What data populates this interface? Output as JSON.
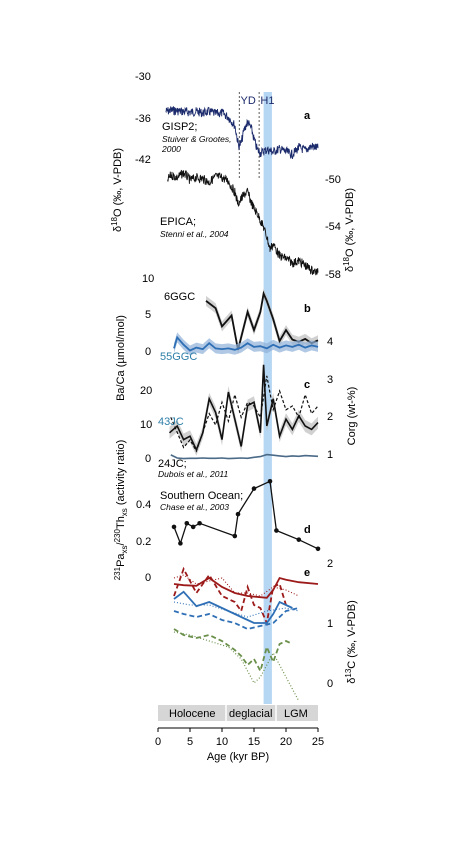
{
  "chart_data": {
    "type": "line",
    "title": "",
    "xlabel": "Age (kyr BP)",
    "xlim": [
      0,
      25
    ],
    "x_ticks": [
      "0",
      "5",
      "10",
      "15",
      "20",
      "25"
    ],
    "event_labels": {
      "yd": "YD",
      "h1": "H1"
    },
    "timeline": [
      "Holocene",
      "deglacial",
      "LGM"
    ],
    "colors": {
      "black": "#111111",
      "navy": "#1b2a6b",
      "blue": "#2f6fb5",
      "red": "#9c1a1a",
      "green": "#6a8f4a",
      "band": "#9ec9ef",
      "shade_blue": "#8fb0d9",
      "shade_gray": "#bdbdbd"
    },
    "panels": [
      {
        "id": "a",
        "panel_label": "a",
        "ylabel": "δ18O (‰, V-PDB)",
        "ylabel_pre": "δ",
        "ylabel_sup": "18",
        "ylabel_post": "O (‰, V-PDB)",
        "left_ticks": [
          "-30",
          "-36",
          "-42"
        ],
        "right_ticks": [
          "-50",
          "-54",
          "-58"
        ],
        "series": [
          {
            "name": "GISP2",
            "label": "GISP2;",
            "citation1": "Stuiver & Grootes,",
            "citation2": "2000",
            "x": [
              1.2,
              2,
              3,
              4,
              5,
              6,
              7,
              8,
              9,
              10,
              11,
              12,
              12.6,
              13,
              13.5,
              14,
              14.6,
              15,
              15.5,
              16,
              17,
              18,
              19,
              20,
              21,
              22,
              23,
              24,
              25
            ],
            "y": [
              -35.0,
              -34.8,
              -34.9,
              -35.0,
              -35.1,
              -35.0,
              -35.2,
              -35.0,
              -35.3,
              -35.2,
              -35.8,
              -37.0,
              -40.0,
              -39.5,
              -37.5,
              -36.5,
              -37.5,
              -39.0,
              -40.5,
              -41.0,
              -40.5,
              -40.8,
              -40.4,
              -40.8,
              -41.2,
              -40.2,
              -40.6,
              -40.0,
              -40.3
            ]
          },
          {
            "name": "EPICA",
            "label": "EPICA;",
            "citation1": "Stenni et al., 2004",
            "x": [
              1.5,
              2,
              3,
              4,
              5,
              6,
              7,
              8,
              9,
              10,
              11,
              11.5,
              12,
              12.5,
              13,
              13.5,
              14,
              14.5,
              15,
              15.5,
              16,
              16.5,
              17,
              17.5,
              18,
              19,
              20,
              21,
              22,
              23,
              24,
              25
            ],
            "y": [
              -50.0,
              -49.6,
              -49.8,
              -49.4,
              -50.0,
              -49.8,
              -49.9,
              -50.2,
              -49.7,
              -49.8,
              -50.1,
              -50.6,
              -51.0,
              -52.0,
              -51.6,
              -51.2,
              -51.0,
              -51.8,
              -52.4,
              -52.8,
              -53.4,
              -54.0,
              -54.8,
              -55.8,
              -55.4,
              -56.4,
              -56.6,
              -57.0,
              -56.8,
              -57.2,
              -57.6,
              -57.8
            ]
          }
        ]
      },
      {
        "id": "b",
        "panel_label": "b",
        "ylabel": "Ba/Ca (µmol/mol)",
        "left_ticks": [
          "10",
          "5",
          "0"
        ],
        "series": [
          {
            "name": "6GGC",
            "label": "6GGC",
            "x": [
              7.5,
              9,
              10,
              11.5,
              12.5,
              14,
              15,
              16,
              16.5,
              17,
              18,
              19,
              20,
              21,
              22,
              23,
              24,
              25
            ],
            "y": [
              7.0,
              6.0,
              3.5,
              5.0,
              0.3,
              5.5,
              3.0,
              5.5,
              8.0,
              7.0,
              4.5,
              1.5,
              3.0,
              1.7,
              1.4,
              1.8,
              1.2,
              1.6
            ]
          },
          {
            "name": "55GGC",
            "label": "55GGC",
            "x": [
              2.5,
              3,
              4,
              5,
              6,
              7,
              8,
              9,
              10,
              11,
              12,
              13,
              14,
              15,
              16,
              17,
              18,
              19,
              20,
              21,
              22,
              23,
              24,
              25
            ],
            "y": [
              0.5,
              2.0,
              1.0,
              0.2,
              0.6,
              0.4,
              1.2,
              0.5,
              0.4,
              0.5,
              0.3,
              0.6,
              1.2,
              0.7,
              0.8,
              0.5,
              1.0,
              0.6,
              0.9,
              0.7,
              1.0,
              0.6,
              0.9,
              0.7
            ]
          }
        ]
      },
      {
        "id": "c",
        "panel_label": "c",
        "ylabel": "Corg (wt-%)",
        "left_ticks": [
          "20",
          "10",
          "0"
        ],
        "right_ticks": [
          "4",
          "3",
          "2",
          "1"
        ],
        "series": [
          {
            "name": "43JC",
            "label": "43JC",
            "x": [
              1.8,
              3,
              4,
              5,
              6,
              7,
              8,
              9,
              10,
              11,
              12,
              13,
              14,
              15,
              16,
              16.5,
              17,
              18,
              19,
              20,
              21,
              22,
              23,
              24,
              25
            ],
            "y": [
              8.0,
              10.0,
              6.0,
              7.0,
              3.0,
              8.0,
              18.0,
              14.0,
              6.0,
              20.0,
              12.0,
              4.0,
              16.0,
              17.0,
              8.0,
              28.0,
              10.0,
              18.0,
              7.0,
              12.0,
              9.0,
              13.0,
              10.0,
              9.0,
              11.0
            ]
          },
          {
            "name": "24JC",
            "label": "24JC;",
            "citation1": "Dubois et al., 2011",
            "x": [
              2,
              3,
              4,
              5,
              6,
              7,
              8,
              9,
              10,
              11,
              12,
              13,
              14,
              15,
              16,
              17,
              18,
              19,
              20,
              21,
              22,
              23,
              24,
              25
            ],
            "y": [
              1.5,
              0.6,
              0.4,
              0.5,
              0.5,
              0.6,
              0.5,
              0.5,
              0.6,
              0.4,
              0.5,
              0.6,
              0.5,
              0.8,
              1.0,
              1.6,
              1.4,
              1.2,
              1.0,
              1.2,
              1.1,
              1.3,
              1.2,
              1.1
            ]
          },
          {
            "name": "Corg dashed",
            "x": [
              2,
              3,
              4,
              5,
              6,
              7,
              8,
              9,
              10,
              11,
              12,
              13,
              14,
              15,
              16,
              17,
              18,
              19,
              20,
              21,
              22,
              23,
              24,
              25
            ],
            "y": [
              2.0,
              1.6,
              1.2,
              1.4,
              1.1,
              1.6,
              2.1,
              1.8,
              2.4,
              1.9,
              2.6,
              2.0,
              2.4,
              2.3,
              2.0,
              3.1,
              2.2,
              2.7,
              2.2,
              2.3,
              2.0,
              2.6,
              2.1,
              2.3
            ]
          }
        ]
      },
      {
        "id": "d",
        "panel_label": "d",
        "ylabel_pre": "",
        "ylabel_sup1": "231",
        "ylabel_mid1": "Pa",
        "ylabel_sub1": "xs",
        "ylabel_mid2": "/",
        "ylabel_sup2": "230",
        "ylabel_mid3": "Th",
        "ylabel_sub2": "xs",
        "ylabel_post": " (activity ratio)",
        "left_ticks": [
          "0.4",
          "0.2",
          "0"
        ],
        "series": [
          {
            "name": "Southern Ocean",
            "label": "Southern Ocean;",
            "citation1": "Chase et al., 2003",
            "x": [
              2.5,
              3.5,
              4.5,
              5.5,
              6.5,
              12,
              12.5,
              15,
              17.5,
              18.5,
              22,
              25
            ],
            "y": [
              0.28,
              0.19,
              0.3,
              0.28,
              0.3,
              0.23,
              0.35,
              0.49,
              0.53,
              0.26,
              0.21,
              0.16
            ]
          }
        ]
      },
      {
        "id": "e",
        "panel_label": "e",
        "ylabel": "δ13C (‰, V-PDB)",
        "ylabel_pre": "δ",
        "ylabel_sup": "13",
        "ylabel_post": "C (‰, V-PDB)",
        "right_ticks": [
          "2",
          "1",
          "0"
        ],
        "series": [
          {
            "name": "red solid",
            "x": [
              2.5,
              4,
              6,
              8,
              10,
              12,
              14,
              16,
              17,
              18,
              19,
              20,
              22,
              25
            ],
            "y": [
              1.65,
              1.63,
              1.62,
              1.75,
              1.6,
              1.5,
              1.45,
              1.43,
              1.42,
              1.55,
              1.75,
              1.72,
              1.68,
              1.65
            ]
          },
          {
            "name": "red dashed",
            "x": [
              2.5,
              4,
              6,
              8,
              10,
              12,
              13,
              14,
              15,
              16,
              17,
              18,
              19,
              20
            ],
            "y": [
              1.45,
              1.9,
              1.5,
              1.8,
              1.45,
              1.35,
              1.2,
              1.6,
              1.3,
              1.25,
              1.0,
              1.6,
              1.65,
              1.3
            ]
          },
          {
            "name": "red dotted",
            "x": [
              2.5,
              4,
              6,
              8,
              10,
              12,
              14,
              16,
              18,
              20,
              22
            ],
            "y": [
              1.75,
              1.8,
              1.65,
              1.7,
              1.75,
              1.5,
              1.5,
              1.45,
              1.6,
              1.55,
              1.45
            ]
          },
          {
            "name": "blue solid",
            "x": [
              2.5,
              4,
              6,
              8,
              10,
              12,
              14,
              15,
              16,
              17,
              18,
              19,
              20,
              21
            ],
            "y": [
              1.4,
              1.52,
              1.28,
              1.35,
              1.25,
              1.15,
              1.05,
              1.0,
              1.0,
              1.0,
              1.15,
              1.35,
              1.3,
              1.25
            ]
          },
          {
            "name": "blue dashed",
            "x": [
              2.5,
              4,
              6,
              8,
              10,
              12,
              14,
              16,
              18,
              20,
              22
            ],
            "y": [
              1.2,
              1.15,
              1.1,
              1.15,
              1.05,
              1.0,
              0.9,
              0.95,
              1.0,
              1.2,
              1.25
            ]
          },
          {
            "name": "blue dotted",
            "x": [
              2.5,
              5,
              8,
              11,
              14,
              17,
              20,
              22
            ],
            "y": [
              1.35,
              1.3,
              1.3,
              1.2,
              1.1,
              1.2,
              1.25,
              1.2
            ]
          },
          {
            "name": "green dashed",
            "x": [
              2.5,
              4,
              6,
              8,
              10,
              12,
              13,
              14,
              15,
              16,
              17,
              18,
              19,
              20,
              21
            ],
            "y": [
              0.9,
              0.8,
              0.75,
              0.8,
              0.7,
              0.55,
              0.45,
              0.3,
              0.4,
              0.2,
              0.6,
              0.35,
              0.65,
              0.7,
              0.65
            ]
          },
          {
            "name": "green dotted",
            "x": [
              2.5,
              5,
              8,
              11,
              13,
              14,
              15,
              16,
              17,
              18,
              19,
              20,
              21,
              22
            ],
            "y": [
              0.85,
              0.8,
              0.7,
              0.6,
              0.4,
              0.2,
              0.0,
              0.1,
              0.3,
              0.5,
              0.3,
              0.1,
              -0.1,
              -0.3
            ]
          }
        ]
      }
    ]
  }
}
